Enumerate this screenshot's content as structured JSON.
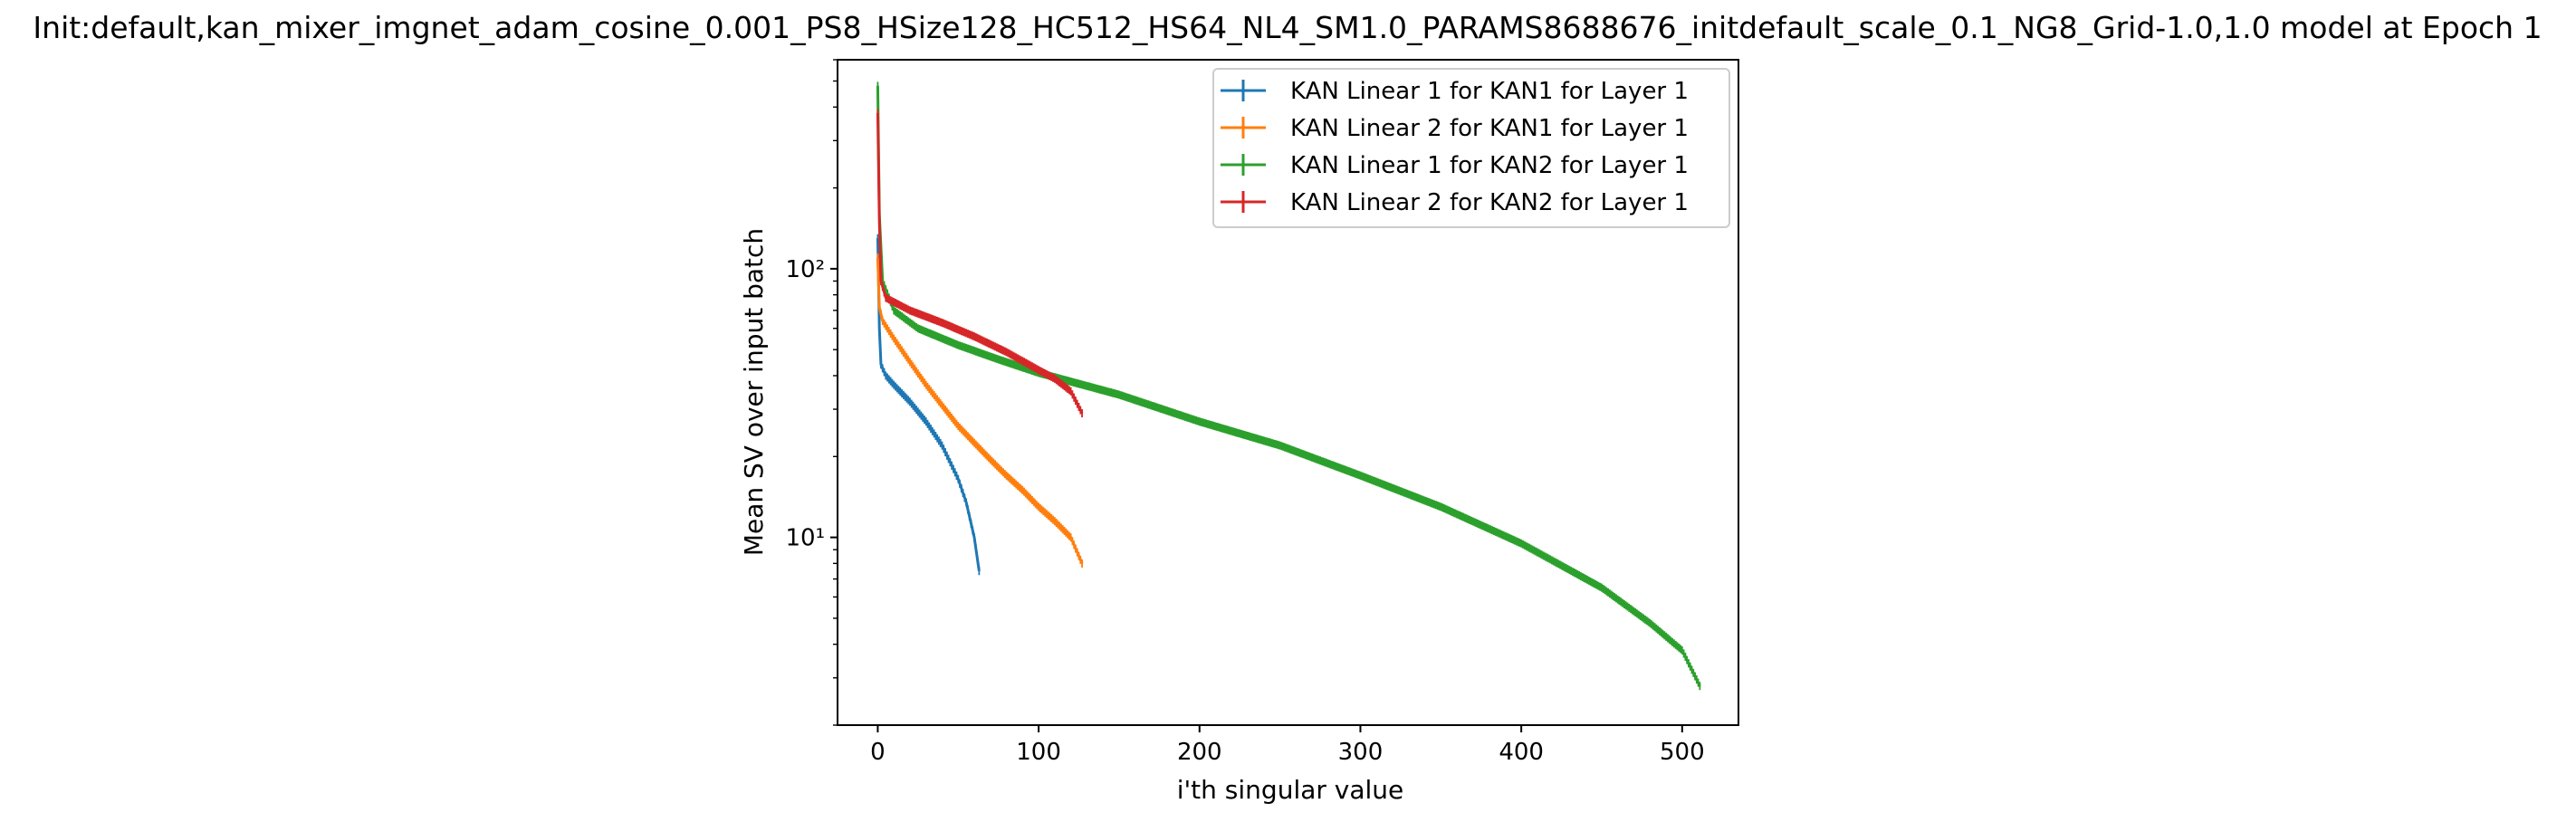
{
  "chart_data": {
    "type": "line",
    "title": "Init:default,kan_mixer_imgnet_adam_cosine_0.001_PS8_HSize128_HC512_HS64_NL4_SM1.0_PARAMS8688676_initdefault_scale_0.1_NG8_Grid-1.0,1.0 model at Epoch 1",
    "xlabel": "i'th singular value",
    "ylabel": "Mean SV over input batch",
    "yscale": "log",
    "xlim": [
      -25,
      535
    ],
    "ylim": [
      2.0,
      600
    ],
    "xticks": [
      0,
      100,
      200,
      300,
      400,
      500
    ],
    "yticks": [
      10,
      100
    ],
    "ytick_labels": [
      "10¹",
      "10²"
    ],
    "grid": false,
    "legend_position": "top-right",
    "error_bars": true,
    "series": [
      {
        "name": "KAN Linear 1 for KAN1 for Layer 1",
        "color": "#1f77b4",
        "count": 64,
        "points": [
          [
            0,
            130
          ],
          [
            1,
            60
          ],
          [
            2,
            44
          ],
          [
            5,
            40
          ],
          [
            10,
            37
          ],
          [
            20,
            32
          ],
          [
            30,
            27
          ],
          [
            40,
            22
          ],
          [
            50,
            16.5
          ],
          [
            55,
            13.5
          ],
          [
            60,
            10
          ],
          [
            63,
            7.5
          ]
        ]
      },
      {
        "name": "KAN Linear 2 for KAN1 for Layer 1",
        "color": "#ff7f0e",
        "count": 128,
        "points": [
          [
            0,
            110
          ],
          [
            1,
            72
          ],
          [
            3,
            64
          ],
          [
            10,
            55
          ],
          [
            20,
            45
          ],
          [
            30,
            37
          ],
          [
            40,
            31
          ],
          [
            50,
            26
          ],
          [
            60,
            22.5
          ],
          [
            70,
            19.5
          ],
          [
            80,
            17
          ],
          [
            90,
            15
          ],
          [
            100,
            13
          ],
          [
            110,
            11.5
          ],
          [
            120,
            10
          ],
          [
            127,
            8
          ]
        ]
      },
      {
        "name": "KAN Linear 1 for KAN2 for Layer 1",
        "color": "#2ca02c",
        "count": 512,
        "points": [
          [
            0,
            480
          ],
          [
            1,
            160
          ],
          [
            3,
            90
          ],
          [
            10,
            70
          ],
          [
            25,
            60
          ],
          [
            50,
            52
          ],
          [
            75,
            46
          ],
          [
            100,
            41
          ],
          [
            150,
            34
          ],
          [
            200,
            27
          ],
          [
            250,
            22
          ],
          [
            300,
            17
          ],
          [
            350,
            13
          ],
          [
            400,
            9.5
          ],
          [
            450,
            6.5
          ],
          [
            480,
            4.8
          ],
          [
            500,
            3.8
          ],
          [
            511,
            2.8
          ]
        ]
      },
      {
        "name": "KAN Linear 2 for KAN2 for Layer 1",
        "color": "#d62728",
        "count": 128,
        "points": [
          [
            0,
            380
          ],
          [
            1,
            150
          ],
          [
            2,
            90
          ],
          [
            5,
            78
          ],
          [
            20,
            70
          ],
          [
            40,
            63
          ],
          [
            60,
            56
          ],
          [
            80,
            49
          ],
          [
            100,
            42
          ],
          [
            110,
            39
          ],
          [
            120,
            35
          ],
          [
            127,
            29
          ]
        ]
      }
    ]
  }
}
